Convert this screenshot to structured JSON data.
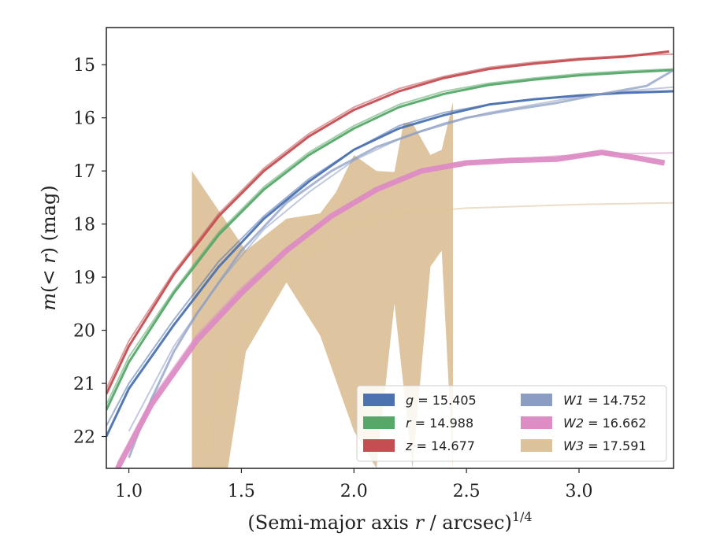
{
  "chart_data": {
    "type": "line",
    "title": "",
    "xlabel": "(Semi-major axis r / arcsec)^{1/4}",
    "ylabel": "m(< r) (mag)",
    "xlim": [
      0.9,
      3.42
    ],
    "ylim": [
      22.6,
      14.3
    ],
    "y_inverted": true,
    "grid": false,
    "legend_placement": "lower-right",
    "xticks": [
      "1.0",
      "1.5",
      "2.0",
      "2.5",
      "3.0"
    ],
    "xtick_values": [
      1.0,
      1.5,
      2.0,
      2.5,
      3.0
    ],
    "yticks": [
      "15",
      "16",
      "17",
      "18",
      "19",
      "20",
      "21",
      "22"
    ],
    "ytick_values": [
      15,
      16,
      17,
      18,
      19,
      20,
      21,
      22
    ],
    "series": [
      {
        "name": "g = 15.405",
        "band": "g",
        "value": "15.405",
        "color": "#4c72b0",
        "data": [
          [
            0.9,
            22.0
          ],
          [
            1.0,
            21.1
          ],
          [
            1.2,
            19.9
          ],
          [
            1.4,
            18.8
          ],
          [
            1.6,
            17.9
          ],
          [
            1.8,
            17.2
          ],
          [
            2.0,
            16.6
          ],
          [
            2.2,
            16.2
          ],
          [
            2.4,
            15.95
          ],
          [
            2.6,
            15.75
          ],
          [
            2.8,
            15.65
          ],
          [
            3.0,
            15.58
          ],
          [
            3.2,
            15.53
          ],
          [
            3.42,
            15.5
          ]
        ],
        "model": [
          [
            0.9,
            21.8
          ],
          [
            1.0,
            21.0
          ],
          [
            1.2,
            19.8
          ],
          [
            1.4,
            18.7
          ],
          [
            1.6,
            17.85
          ],
          [
            1.8,
            17.15
          ],
          [
            2.0,
            16.6
          ],
          [
            2.2,
            16.15
          ],
          [
            2.4,
            15.9
          ],
          [
            2.6,
            15.75
          ],
          [
            2.8,
            15.65
          ],
          [
            3.0,
            15.57
          ],
          [
            3.2,
            15.52
          ],
          [
            3.42,
            15.49
          ]
        ]
      },
      {
        "name": "r = 14.988",
        "band": "r",
        "value": "14.988",
        "color": "#55a868",
        "data": [
          [
            0.9,
            21.5
          ],
          [
            1.0,
            20.6
          ],
          [
            1.2,
            19.3
          ],
          [
            1.4,
            18.2
          ],
          [
            1.6,
            17.35
          ],
          [
            1.8,
            16.7
          ],
          [
            2.0,
            16.2
          ],
          [
            2.2,
            15.8
          ],
          [
            2.4,
            15.55
          ],
          [
            2.6,
            15.38
          ],
          [
            2.8,
            15.28
          ],
          [
            3.0,
            15.2
          ],
          [
            3.2,
            15.15
          ],
          [
            3.42,
            15.1
          ]
        ],
        "model": [
          [
            0.9,
            21.4
          ],
          [
            1.0,
            20.5
          ],
          [
            1.2,
            19.25
          ],
          [
            1.4,
            18.15
          ],
          [
            1.6,
            17.3
          ],
          [
            1.8,
            16.65
          ],
          [
            2.0,
            16.15
          ],
          [
            2.2,
            15.75
          ],
          [
            2.4,
            15.5
          ],
          [
            2.6,
            15.35
          ],
          [
            2.8,
            15.25
          ],
          [
            3.0,
            15.17
          ],
          [
            3.2,
            15.12
          ],
          [
            3.42,
            15.08
          ]
        ]
      },
      {
        "name": "z = 14.677",
        "band": "z",
        "value": "14.677",
        "color": "#c44e52",
        "data": [
          [
            0.9,
            21.2
          ],
          [
            1.0,
            20.3
          ],
          [
            1.2,
            18.95
          ],
          [
            1.4,
            17.85
          ],
          [
            1.6,
            17.0
          ],
          [
            1.8,
            16.35
          ],
          [
            2.0,
            15.85
          ],
          [
            2.2,
            15.5
          ],
          [
            2.4,
            15.25
          ],
          [
            2.6,
            15.08
          ],
          [
            2.8,
            14.98
          ],
          [
            3.0,
            14.9
          ],
          [
            3.2,
            14.85
          ],
          [
            3.4,
            14.75
          ]
        ],
        "model": [
          [
            0.9,
            21.1
          ],
          [
            1.0,
            20.2
          ],
          [
            1.2,
            18.9
          ],
          [
            1.4,
            17.8
          ],
          [
            1.6,
            16.95
          ],
          [
            1.8,
            16.3
          ],
          [
            2.0,
            15.8
          ],
          [
            2.2,
            15.45
          ],
          [
            2.4,
            15.22
          ],
          [
            2.6,
            15.05
          ],
          [
            2.8,
            14.95
          ],
          [
            3.0,
            14.88
          ],
          [
            3.2,
            14.83
          ],
          [
            3.42,
            14.8
          ]
        ]
      },
      {
        "name": "W1 = 14.752",
        "band": "W1",
        "value": "14.752",
        "color": "#8c9dc4",
        "data": [
          [
            1.0,
            22.4
          ],
          [
            1.1,
            21.3
          ],
          [
            1.2,
            20.4
          ],
          [
            1.3,
            19.7
          ],
          [
            1.4,
            19.1
          ],
          [
            1.5,
            18.5
          ],
          [
            1.7,
            17.6
          ],
          [
            1.9,
            17.0
          ],
          [
            2.1,
            16.55
          ],
          [
            2.3,
            16.25
          ],
          [
            2.5,
            16.0
          ],
          [
            2.7,
            15.85
          ],
          [
            2.9,
            15.72
          ],
          [
            3.1,
            15.55
          ],
          [
            3.3,
            15.4
          ],
          [
            3.42,
            15.1
          ]
        ],
        "model": [
          [
            1.0,
            21.9
          ],
          [
            1.2,
            20.3
          ],
          [
            1.4,
            19.1
          ],
          [
            1.6,
            18.1
          ],
          [
            1.8,
            17.4
          ],
          [
            2.0,
            16.8
          ],
          [
            2.2,
            16.4
          ],
          [
            2.4,
            16.1
          ],
          [
            2.6,
            15.9
          ],
          [
            2.8,
            15.75
          ],
          [
            3.0,
            15.6
          ],
          [
            3.2,
            15.5
          ],
          [
            3.42,
            15.42
          ]
        ]
      },
      {
        "name": "W2 = 16.662",
        "band": "W2",
        "value": "16.662",
        "color": "#dd8cc4",
        "data": [
          [
            0.95,
            22.6
          ],
          [
            1.1,
            21.4
          ],
          [
            1.3,
            20.2
          ],
          [
            1.5,
            19.3
          ],
          [
            1.7,
            18.5
          ],
          [
            1.9,
            17.85
          ],
          [
            2.1,
            17.35
          ],
          [
            2.3,
            17.0
          ],
          [
            2.5,
            16.85
          ],
          [
            2.7,
            16.8
          ],
          [
            2.9,
            16.78
          ],
          [
            3.1,
            16.65
          ],
          [
            3.25,
            16.75
          ],
          [
            3.38,
            16.85
          ]
        ],
        "model": [
          [
            0.95,
            22.5
          ],
          [
            1.1,
            21.3
          ],
          [
            1.3,
            20.1
          ],
          [
            1.5,
            19.2
          ],
          [
            1.7,
            18.45
          ],
          [
            1.9,
            17.85
          ],
          [
            2.1,
            17.35
          ],
          [
            2.3,
            17.0
          ],
          [
            2.5,
            16.85
          ],
          [
            2.7,
            16.78
          ],
          [
            2.9,
            16.72
          ],
          [
            3.1,
            16.68
          ],
          [
            3.42,
            16.66
          ]
        ]
      },
      {
        "name": "W3 = 17.591",
        "band": "W3",
        "value": "17.591",
        "color": "#dcc29a",
        "upper": [
          [
            1.28,
            17.0
          ],
          [
            1.52,
            18.5
          ],
          [
            1.7,
            17.9
          ],
          [
            1.85,
            17.8
          ],
          [
            1.92,
            17.4
          ],
          [
            2.0,
            16.7
          ],
          [
            2.1,
            17.0
          ],
          [
            2.18,
            17.02
          ],
          [
            2.22,
            16.1
          ],
          [
            2.26,
            16.1
          ],
          [
            2.34,
            16.7
          ],
          [
            2.39,
            16.6
          ],
          [
            2.44,
            15.7
          ]
        ],
        "lower": [
          [
            1.28,
            22.6
          ],
          [
            1.35,
            22.6
          ],
          [
            1.44,
            22.6
          ],
          [
            1.52,
            20.4
          ],
          [
            1.7,
            19.1
          ],
          [
            1.85,
            20.1
          ],
          [
            2.0,
            21.9
          ],
          [
            2.1,
            22.6
          ],
          [
            2.18,
            19.5
          ],
          [
            2.26,
            22.6
          ],
          [
            2.34,
            18.8
          ],
          [
            2.39,
            18.5
          ],
          [
            2.44,
            22.6
          ]
        ],
        "model": [
          [
            1.3,
            22.6
          ],
          [
            1.35,
            22.0
          ],
          [
            1.45,
            20.6
          ],
          [
            1.6,
            19.4
          ],
          [
            1.8,
            18.5
          ],
          [
            2.0,
            18.0
          ],
          [
            2.2,
            17.8
          ],
          [
            2.5,
            17.7
          ],
          [
            3.0,
            17.63
          ],
          [
            3.42,
            17.6
          ]
        ]
      }
    ]
  }
}
